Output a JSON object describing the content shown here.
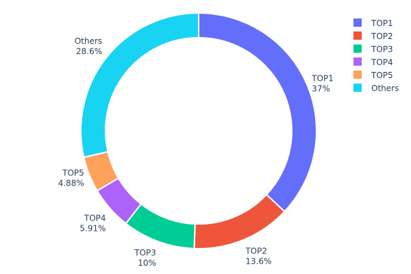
{
  "chart_data": {
    "type": "pie",
    "hole": true,
    "sort": "clockwise-from-top",
    "labels": [
      "TOP1",
      "TOP2",
      "TOP3",
      "TOP4",
      "TOP5",
      "Others"
    ],
    "values": [
      37,
      13.6,
      10,
      5.91,
      4.88,
      28.6
    ],
    "value_labels": [
      "37%",
      "13.6%",
      "10%",
      "5.91%",
      "4.88%",
      "28.6%"
    ],
    "colors": [
      "#636efa",
      "#EF553B",
      "#00cc96",
      "#ab63fa",
      "#FFA15A",
      "#19d3f3"
    ],
    "legend": {
      "placement": "top-right",
      "entries": [
        "TOP1",
        "TOP2",
        "TOP3",
        "TOP4",
        "TOP5",
        "Others"
      ]
    },
    "title": ""
  }
}
